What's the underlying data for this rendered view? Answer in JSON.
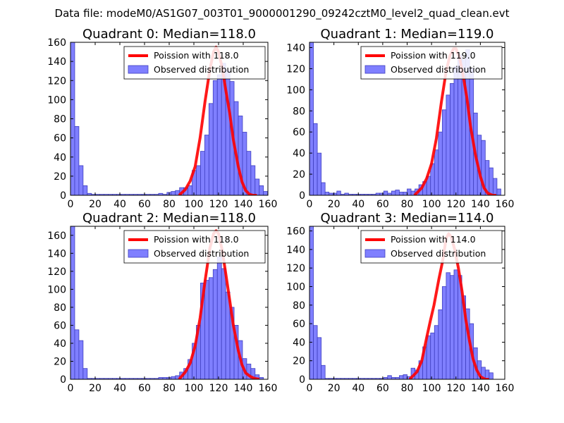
{
  "figure": {
    "suptitle": "Data file: modeM0/AS1G07_003T01_9000001290_09242cztM0_level2_quad_clean.evt"
  },
  "colors": {
    "hist_fill": "#7f7fff",
    "hist_edge": "#3f3fbf",
    "poisson_line": "#ff0000",
    "axes": "#000000",
    "legend_edge": "#000000"
  },
  "chart_data": [
    {
      "type": "bar",
      "title": "Quadrant 0: Median=118.0",
      "median": 118.0,
      "xlim": [
        0,
        160
      ],
      "ylim": [
        0,
        160
      ],
      "xticks": [
        0,
        20,
        40,
        60,
        80,
        100,
        120,
        140,
        160
      ],
      "yticks": [
        0,
        20,
        40,
        60,
        80,
        100,
        120,
        140,
        160
      ],
      "bin_width": 3.4,
      "bins": [
        [
          0,
          160
        ],
        [
          3.4,
          72
        ],
        [
          6.8,
          31
        ],
        [
          10.2,
          10
        ],
        [
          13.6,
          2
        ],
        [
          17,
          1
        ],
        [
          20.4,
          1
        ],
        [
          23.8,
          1
        ],
        [
          27.2,
          1
        ],
        [
          30.6,
          1
        ],
        [
          34,
          1
        ],
        [
          37.4,
          1
        ],
        [
          40.8,
          1
        ],
        [
          44.2,
          1
        ],
        [
          47.6,
          1
        ],
        [
          51,
          1
        ],
        [
          54.4,
          1
        ],
        [
          57.8,
          1
        ],
        [
          61.2,
          1
        ],
        [
          64.6,
          1
        ],
        [
          68,
          1
        ],
        [
          71.4,
          2
        ],
        [
          74.8,
          1
        ],
        [
          78.2,
          3
        ],
        [
          81.6,
          4
        ],
        [
          85,
          5
        ],
        [
          88.4,
          8
        ],
        [
          91.8,
          8
        ],
        [
          95.2,
          10
        ],
        [
          98.6,
          26
        ],
        [
          102,
          31
        ],
        [
          105.4,
          46
        ],
        [
          108.8,
          63
        ],
        [
          112.2,
          96
        ],
        [
          115.6,
          120
        ],
        [
          119,
          126
        ],
        [
          122.4,
          138
        ],
        [
          125.8,
          131
        ],
        [
          129.2,
          119
        ],
        [
          132.6,
          98
        ],
        [
          136,
          83
        ],
        [
          139.4,
          66
        ],
        [
          142.8,
          46
        ],
        [
          146.2,
          31
        ],
        [
          149.6,
          17
        ],
        [
          153,
          10
        ],
        [
          156.4,
          4
        ]
      ],
      "poisson_curve": [
        [
          88,
          0
        ],
        [
          93,
          6
        ],
        [
          97,
          15
        ],
        [
          101,
          30
        ],
        [
          105,
          60
        ],
        [
          109,
          98
        ],
        [
          113,
          132
        ],
        [
          116,
          150
        ],
        [
          118,
          155
        ],
        [
          120,
          150
        ],
        [
          123,
          133
        ],
        [
          126,
          109
        ],
        [
          129,
          86
        ],
        [
          132,
          58
        ],
        [
          136,
          30
        ],
        [
          139,
          14
        ],
        [
          142,
          5
        ],
        [
          145,
          1
        ],
        [
          148,
          0
        ],
        [
          151,
          0
        ]
      ],
      "legend": {
        "poisson_label": "Poission with 118.0",
        "hist_label": "Observed distribution"
      }
    },
    {
      "type": "bar",
      "title": "Quadrant 1: Median=119.0",
      "median": 119.0,
      "xlim": [
        0,
        160
      ],
      "ylim": [
        0,
        145
      ],
      "xticks": [
        0,
        20,
        40,
        60,
        80,
        100,
        120,
        140,
        160
      ],
      "yticks": [
        0,
        20,
        40,
        60,
        80,
        100,
        120,
        140
      ],
      "bin_width": 3.2,
      "bins": [
        [
          0,
          145
        ],
        [
          3.2,
          68
        ],
        [
          6.4,
          40
        ],
        [
          9.6,
          12
        ],
        [
          12.8,
          3
        ],
        [
          16,
          2
        ],
        [
          19.2,
          2
        ],
        [
          22.4,
          4
        ],
        [
          25.6,
          1
        ],
        [
          28.8,
          2
        ],
        [
          32,
          1
        ],
        [
          35.2,
          1
        ],
        [
          38.4,
          1
        ],
        [
          41.6,
          1
        ],
        [
          44.8,
          1
        ],
        [
          48,
          1
        ],
        [
          51.2,
          1
        ],
        [
          54.4,
          2
        ],
        [
          57.6,
          2
        ],
        [
          60.8,
          4
        ],
        [
          64,
          2
        ],
        [
          67.2,
          4
        ],
        [
          70.4,
          5
        ],
        [
          73.6,
          3
        ],
        [
          76.8,
          3
        ],
        [
          80,
          6
        ],
        [
          83.2,
          4
        ],
        [
          86.4,
          6
        ],
        [
          89.6,
          10
        ],
        [
          92.8,
          13
        ],
        [
          96,
          18
        ],
        [
          99.2,
          30
        ],
        [
          102.4,
          43
        ],
        [
          105.6,
          60
        ],
        [
          108.8,
          81
        ],
        [
          112,
          95
        ],
        [
          115.2,
          106
        ],
        [
          118.4,
          122
        ],
        [
          121.6,
          133
        ],
        [
          124.8,
          129
        ],
        [
          128,
          138
        ],
        [
          131.2,
          120
        ],
        [
          134.4,
          78
        ],
        [
          137.6,
          57
        ],
        [
          140.8,
          52
        ],
        [
          144,
          33
        ],
        [
          147.2,
          26
        ],
        [
          150.4,
          16
        ],
        [
          153.6,
          6
        ]
      ],
      "poisson_curve": [
        [
          86,
          0
        ],
        [
          92,
          7
        ],
        [
          96,
          16
        ],
        [
          100,
          30
        ],
        [
          104,
          54
        ],
        [
          108,
          88
        ],
        [
          112,
          118
        ],
        [
          115,
          132
        ],
        [
          118,
          139
        ],
        [
          120,
          139
        ],
        [
          123,
          130
        ],
        [
          126,
          113
        ],
        [
          129,
          92
        ],
        [
          132,
          65
        ],
        [
          136,
          38
        ],
        [
          140,
          18
        ],
        [
          143,
          7
        ],
        [
          146,
          2
        ],
        [
          150,
          0
        ],
        [
          153,
          0
        ]
      ],
      "legend": {
        "poisson_label": "Poission with 119.0",
        "hist_label": "Observed distribution"
      }
    },
    {
      "type": "bar",
      "title": "Quadrant 2: Median=118.0",
      "median": 118.0,
      "xlim": [
        0,
        160
      ],
      "ylim": [
        0,
        170
      ],
      "xticks": [
        0,
        20,
        40,
        60,
        80,
        100,
        120,
        140,
        160
      ],
      "yticks": [
        0,
        20,
        40,
        60,
        80,
        100,
        120,
        140,
        160
      ],
      "bin_width": 3.4,
      "bins": [
        [
          0,
          170
        ],
        [
          3.4,
          55
        ],
        [
          6.8,
          43
        ],
        [
          10.2,
          12
        ],
        [
          13.6,
          1
        ],
        [
          17,
          1
        ],
        [
          20.4,
          1
        ],
        [
          23.8,
          1
        ],
        [
          27.2,
          1
        ],
        [
          30.6,
          1
        ],
        [
          34,
          1
        ],
        [
          37.4,
          1
        ],
        [
          40.8,
          1
        ],
        [
          44.2,
          1
        ],
        [
          47.6,
          1
        ],
        [
          51,
          1
        ],
        [
          54.4,
          1
        ],
        [
          57.8,
          1
        ],
        [
          61.2,
          1
        ],
        [
          64.6,
          1
        ],
        [
          68,
          1
        ],
        [
          71.4,
          2
        ],
        [
          74.8,
          2
        ],
        [
          78.2,
          2
        ],
        [
          81.6,
          3
        ],
        [
          85,
          4
        ],
        [
          88.4,
          8
        ],
        [
          91.8,
          12
        ],
        [
          95.2,
          22
        ],
        [
          98.6,
          40
        ],
        [
          102,
          60
        ],
        [
          105.4,
          107
        ],
        [
          108.8,
          110
        ],
        [
          112.2,
          113
        ],
        [
          115.6,
          122
        ],
        [
          119,
          136
        ],
        [
          122.4,
          123
        ],
        [
          125.8,
          97
        ],
        [
          129.2,
          80
        ],
        [
          132.6,
          60
        ],
        [
          136,
          43
        ],
        [
          139.4,
          23
        ],
        [
          142.8,
          17
        ],
        [
          146.2,
          12
        ],
        [
          149.6,
          5
        ],
        [
          153,
          2
        ]
      ],
      "poisson_curve": [
        [
          88,
          0
        ],
        [
          93,
          8
        ],
        [
          97,
          18
        ],
        [
          101,
          37
        ],
        [
          105,
          68
        ],
        [
          109,
          109
        ],
        [
          113,
          146
        ],
        [
          116,
          162
        ],
        [
          118,
          165
        ],
        [
          120,
          162
        ],
        [
          123,
          143
        ],
        [
          126,
          116
        ],
        [
          129,
          88
        ],
        [
          132,
          60
        ],
        [
          136,
          32
        ],
        [
          139,
          16
        ],
        [
          142,
          7
        ],
        [
          146,
          3
        ],
        [
          149,
          1
        ],
        [
          153,
          0
        ]
      ],
      "legend": {
        "poisson_label": "Poission with 118.0",
        "hist_label": "Observed distribution"
      }
    },
    {
      "type": "bar",
      "title": "Quadrant 3: Median=114.0",
      "median": 114.0,
      "xlim": [
        0,
        160
      ],
      "ylim": [
        0,
        165
      ],
      "xticks": [
        0,
        20,
        40,
        60,
        80,
        100,
        120,
        140,
        160
      ],
      "yticks": [
        0,
        20,
        40,
        60,
        80,
        100,
        120,
        140,
        160
      ],
      "bin_width": 3.2,
      "bins": [
        [
          0,
          165
        ],
        [
          3.2,
          58
        ],
        [
          6.4,
          45
        ],
        [
          9.6,
          15
        ],
        [
          12.8,
          1
        ],
        [
          16,
          1
        ],
        [
          19.2,
          1
        ],
        [
          22.4,
          1
        ],
        [
          25.6,
          1
        ],
        [
          28.8,
          1
        ],
        [
          32,
          1
        ],
        [
          35.2,
          1
        ],
        [
          38.4,
          1
        ],
        [
          41.6,
          1
        ],
        [
          44.8,
          1
        ],
        [
          48,
          1
        ],
        [
          51.2,
          1
        ],
        [
          54.4,
          1
        ],
        [
          57.6,
          1
        ],
        [
          60.8,
          2
        ],
        [
          64,
          4
        ],
        [
          67.2,
          2
        ],
        [
          70.4,
          2
        ],
        [
          73.6,
          4
        ],
        [
          76.8,
          5
        ],
        [
          80,
          3
        ],
        [
          83.2,
          12
        ],
        [
          86.4,
          10
        ],
        [
          89.6,
          20
        ],
        [
          92.8,
          35
        ],
        [
          96,
          47
        ],
        [
          99.2,
          50
        ],
        [
          102.4,
          58
        ],
        [
          105.6,
          75
        ],
        [
          108.8,
          100
        ],
        [
          112,
          115
        ],
        [
          115.2,
          112
        ],
        [
          118.4,
          118
        ],
        [
          121.6,
          112
        ],
        [
          124.8,
          90
        ],
        [
          128,
          76
        ],
        [
          131.2,
          60
        ],
        [
          134.4,
          34
        ],
        [
          137.6,
          20
        ],
        [
          140.8,
          13
        ],
        [
          144,
          10
        ],
        [
          147.2,
          7
        ]
      ],
      "poisson_curve": [
        [
          82,
          0
        ],
        [
          88,
          8
        ],
        [
          92,
          20
        ],
        [
          96,
          45
        ],
        [
          99,
          63
        ],
        [
          102,
          80
        ],
        [
          106,
          108
        ],
        [
          109,
          127
        ],
        [
          112,
          152
        ],
        [
          114,
          157
        ],
        [
          116,
          154
        ],
        [
          119,
          140
        ],
        [
          122,
          120
        ],
        [
          125,
          95
        ],
        [
          128,
          65
        ],
        [
          131,
          42
        ],
        [
          134,
          22
        ],
        [
          137,
          10
        ],
        [
          140,
          3
        ],
        [
          144,
          0
        ],
        [
          147,
          0
        ]
      ],
      "legend": {
        "poisson_label": "Poission with 114.0",
        "hist_label": "Observed distribution"
      }
    }
  ]
}
